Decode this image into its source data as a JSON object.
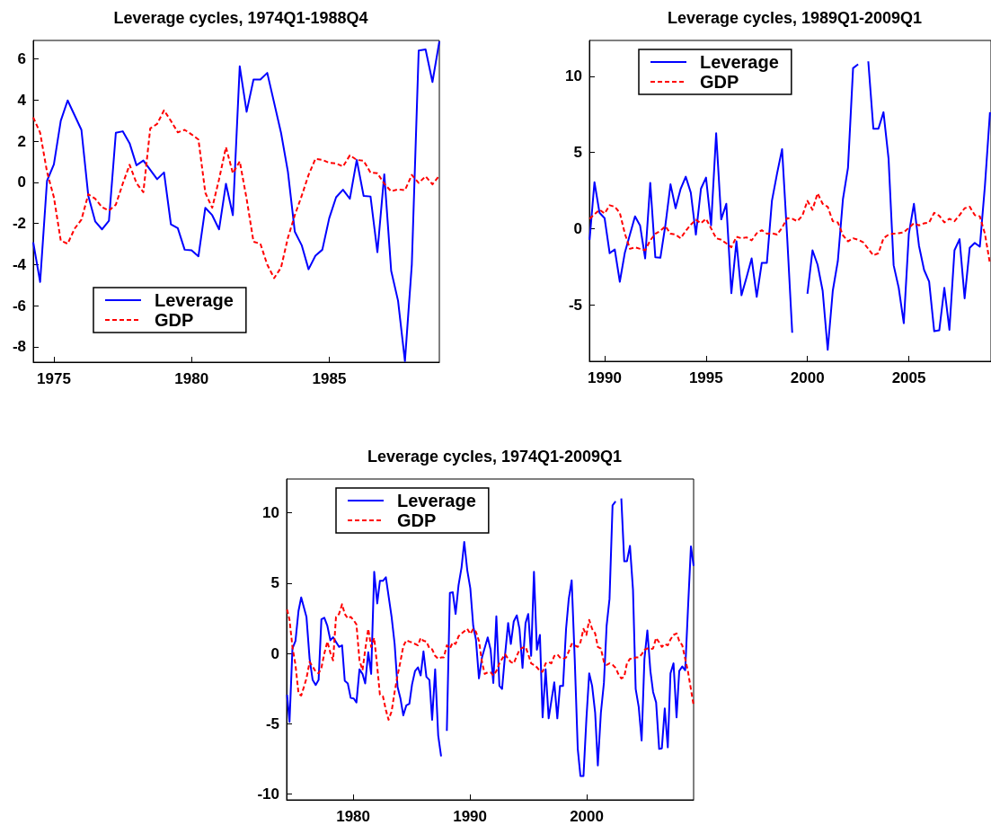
{
  "chart_data": [
    {
      "type": "line",
      "title": "Leverage cycles, 1974Q1-1988Q4",
      "xlim": [
        1974.25,
        1989
      ],
      "xticks": [
        1975,
        1980,
        1985
      ],
      "ylim": [
        -8.75,
        6.9
      ],
      "yticks": [
        -8,
        -6,
        -4,
        -2,
        0,
        2,
        4,
        6
      ],
      "legend": "bottom left",
      "marker": "none",
      "series": [
        {
          "name": "Leverage",
          "color": "#0000ff",
          "line_style": "solid",
          "x": [
            1974.25,
            1974.5,
            1974.75,
            1975,
            1975.25,
            1975.5,
            1976,
            1976.25,
            1976.5,
            1976.75,
            1977,
            1977.25,
            1977.5,
            1977.75,
            1978,
            1978.25,
            1978.75,
            1979,
            1979.25,
            1979.5,
            1979.75,
            1980,
            1980.25,
            1980.5,
            1980.75,
            1981,
            1981.25,
            1981.5,
            1981.75,
            1982,
            1982.25,
            1982.5,
            1982.75,
            1983.25,
            1983.5,
            1983.75,
            1984,
            1984.25,
            1984.5,
            1984.75,
            1985,
            1985.25,
            1985.5,
            1985.75,
            1986,
            1986.25,
            1986.5,
            1986.75,
            1987,
            1987.25,
            1987.5,
            1987.75,
            1988,
            1988.25,
            1988.5,
            1988.75,
            1989
          ],
          "values": [
            -2.92,
            -4.85,
            0.07,
            0.87,
            2.99,
            3.98,
            2.55,
            -0.66,
            -1.9,
            -2.29,
            -1.87,
            2.41,
            2.48,
            1.9,
            0.83,
            1.06,
            0.15,
            0.48,
            -2.04,
            -2.23,
            -3.28,
            -3.31,
            -3.6,
            -1.24,
            -1.6,
            -2.29,
            -0.07,
            -1.6,
            5.64,
            3.43,
            5.0,
            5.0,
            5.32,
            2.41,
            0.51,
            -2.4,
            -3.06,
            -4.23,
            -3.57,
            -3.28,
            -1.75,
            -0.73,
            -0.36,
            -0.8,
            1.09,
            -0.66,
            -0.69,
            -3.4,
            0.39,
            -4.3,
            -5.76,
            -8.7,
            -4.0,
            6.41,
            6.46,
            4.88,
            6.85
          ]
        },
        {
          "name": "GDP",
          "color": "#ff0000",
          "line_style": "dashed",
          "x": [
            1974.25,
            1974.5,
            1974.75,
            1975,
            1975.25,
            1975.5,
            1975.75,
            1976,
            1976.25,
            1976.5,
            1976.75,
            1977,
            1977.25,
            1977.5,
            1977.75,
            1978,
            1978.25,
            1978.5,
            1978.75,
            1979,
            1979.25,
            1979.5,
            1979.75,
            1980,
            1980.25,
            1980.5,
            1980.75,
            1981,
            1981.25,
            1981.5,
            1981.75,
            1982,
            1982.25,
            1982.5,
            1982.75,
            1983,
            1983.25,
            1983.5,
            1983.75,
            1984,
            1984.25,
            1984.5,
            1984.75,
            1985,
            1985.25,
            1985.5,
            1985.75,
            1986,
            1986.25,
            1986.5,
            1986.75,
            1987,
            1987.25,
            1987.5,
            1987.75,
            1988,
            1988.25,
            1988.5,
            1988.75,
            1989
          ],
          "values": [
            3.16,
            2.41,
            0.51,
            -0.73,
            -2.84,
            -2.99,
            -2.26,
            -1.82,
            -0.58,
            -0.8,
            -1.21,
            -1.38,
            -1.09,
            -0.07,
            0.85,
            -0.04,
            -0.48,
            2.62,
            2.84,
            3.5,
            2.99,
            2.43,
            2.55,
            2.33,
            2.08,
            -0.51,
            -1.24,
            0.15,
            1.71,
            0.44,
            1.02,
            -0.8,
            -2.89,
            -2.99,
            -4.01,
            -4.66,
            -4.15,
            -2.7,
            -1.6,
            -0.66,
            0.36,
            1.14,
            1.09,
            0.95,
            0.92,
            0.77,
            1.31,
            1.09,
            1.05,
            0.47,
            0.44,
            -0.07,
            -0.44,
            -0.34,
            -0.39,
            0.36,
            -0.03,
            0.29,
            -0.1,
            0.32
          ]
        }
      ]
    },
    {
      "type": "line",
      "title": "Leverage cycles, 1989Q1-2009Q1",
      "xlim": [
        1989.25,
        2009.05
      ],
      "xticks": [
        1990,
        1995,
        2000,
        2005
      ],
      "ylim": [
        -8.7,
        12.35
      ],
      "yticks": [
        -5,
        0,
        5,
        10
      ],
      "legend": "top left",
      "marker": "none",
      "series": [
        {
          "name": "Leverage",
          "color": "#0000ff",
          "line_style": "solid",
          "x": [
            1989.26,
            1989.5,
            1989.75,
            1990,
            1990.25,
            1990.5,
            1990.75,
            1991,
            1991.5,
            1991.75,
            1992,
            1992.25,
            1992.5,
            1992.75,
            1993,
            1993.25,
            1993.5,
            1993.75,
            1994,
            1994.25,
            1994.5,
            1994.75,
            1995,
            1995.25,
            1995.5,
            1995.75,
            1996,
            1996.25,
            1996.5,
            1996.75,
            1997,
            1997.25,
            1997.5,
            1997.75,
            1998,
            1998.25,
            1998.5,
            1998.75,
            1999,
            1999.25,
            1999.5,
            1999.75,
            2000,
            2000.25,
            2000.5,
            2000.75,
            2001,
            2001.25,
            2001.5,
            2001.75,
            2002,
            2002.25,
            2002.5,
            2002.75,
            2003,
            2003.25,
            2003.5,
            2003.75,
            2004,
            2004.25,
            2004.5,
            2004.75,
            2005,
            2005.25,
            2005.5,
            2005.75,
            2006,
            2006.25,
            2006.5,
            2006.75,
            2007,
            2007.25,
            2007.5,
            2007.75,
            2008,
            2008.25,
            2008.5,
            2008.75,
            2009
          ],
          "values": [
            -0.73,
            3.05,
            1.04,
            0.69,
            -1.61,
            -1.36,
            -3.48,
            -1.56,
            0.81,
            0.2,
            -1.95,
            3.01,
            -1.87,
            -1.91,
            0.26,
            2.91,
            1.34,
            2.62,
            3.41,
            2.36,
            -0.39,
            2.62,
            3.35,
            0.22,
            6.26,
            0.61,
            1.63,
            -4.23,
            -0.83,
            -4.37,
            -3.19,
            -1.95,
            -4.47,
            -2.24,
            -2.24,
            1.83,
            3.6,
            5.22,
            -0.53,
            -6.83,
            null,
            null,
            -4.27,
            -1.42,
            -2.36,
            -4.07,
            -7.95,
            -4.07,
            -2.11,
            1.93,
            4.0,
            10.53,
            10.79,
            null,
            10.98,
            6.56,
            6.56,
            7.64,
            4.59,
            -2.4,
            -3.88,
            -6.2,
            -0.33,
            1.63,
            -1.12,
            -2.7,
            -3.48,
            -6.73,
            -6.67,
            -3.88,
            -6.63,
            -1.42,
            -0.69,
            -4.57,
            -1.26,
            -0.93,
            -1.18,
            2.81,
            7.64
          ]
        },
        {
          "name": "GDP",
          "color": "#ff0000",
          "line_style": "dashed",
          "x": [
            1989.26,
            1989.5,
            1989.75,
            1990,
            1990.25,
            1990.5,
            1990.75,
            1991,
            1991.25,
            1991.5,
            1991.75,
            1992,
            1992.25,
            1992.5,
            1992.75,
            1993,
            1993.25,
            1993.5,
            1993.75,
            1994,
            1994.25,
            1994.5,
            1994.75,
            1995,
            1995.25,
            1995.5,
            1995.75,
            1996,
            1996.25,
            1996.5,
            1996.75,
            1997,
            1997.25,
            1997.5,
            1997.75,
            1998,
            1998.25,
            1998.5,
            1998.75,
            1999,
            1999.25,
            1999.5,
            1999.75,
            2000,
            2000.25,
            2000.5,
            2000.75,
            2001,
            2001.25,
            2001.5,
            2001.75,
            2002,
            2002.25,
            2002.5,
            2002.75,
            2003,
            2003.25,
            2003.5,
            2003.75,
            2004,
            2004.25,
            2004.5,
            2004.75,
            2005,
            2005.25,
            2005.5,
            2005.75,
            2006,
            2006.25,
            2006.5,
            2006.75,
            2007,
            2007.25,
            2007.5,
            2007.75,
            2008,
            2008.25,
            2008.5,
            2008.75,
            2009
          ],
          "values": [
            0.65,
            0.94,
            1.24,
            1.0,
            1.54,
            1.44,
            1.04,
            -0.33,
            -1.32,
            -1.22,
            -1.32,
            -1.42,
            -0.77,
            -0.33,
            -0.14,
            0.16,
            -0.33,
            -0.39,
            -0.63,
            -0.14,
            0.26,
            0.59,
            0.35,
            0.65,
            0.02,
            -0.63,
            -0.73,
            -0.96,
            -1.22,
            -0.53,
            -0.63,
            -0.57,
            -0.77,
            -0.3,
            -0.1,
            -0.33,
            -0.3,
            -0.39,
            0.06,
            0.69,
            0.65,
            0.49,
            0.85,
            1.83,
            1.24,
            2.32,
            1.63,
            1.44,
            0.49,
            0.41,
            -0.43,
            -0.83,
            -0.63,
            -0.73,
            -0.89,
            -1.32,
            -1.75,
            -1.61,
            -0.63,
            -0.39,
            -0.33,
            -0.3,
            -0.24,
            0.06,
            0.35,
            0.22,
            0.35,
            0.41,
            1.04,
            0.85,
            0.41,
            0.65,
            0.49,
            0.89,
            1.34,
            1.44,
            0.89,
            0.81,
            -0.33,
            -2.3
          ]
        }
      ]
    },
    {
      "type": "line",
      "title": "Leverage cycles, 1974Q1-2009Q1",
      "xlim": [
        1974.3,
        2009.15
      ],
      "xticks": [
        1980,
        1990,
        2000
      ],
      "ylim": [
        -10.4,
        12.4
      ],
      "yticks": [
        -10,
        -5,
        0,
        5,
        10
      ],
      "legend": "top left",
      "marker": "none",
      "series": [
        {
          "name": "Leverage",
          "color": "#0000ff",
          "line_style": "solid",
          "x": [
            1974.34,
            1974.55,
            1974.8,
            1975.06,
            1975.32,
            1975.55,
            1976,
            1976.27,
            1976.53,
            1976.79,
            1977.04,
            1977.28,
            1977.53,
            1977.79,
            1978.05,
            1978.28,
            1978.79,
            1979.05,
            1979.28,
            1979.54,
            1979.79,
            1980.05,
            1980.28,
            1980.54,
            1980.8,
            1981.03,
            1981.29,
            1981.54,
            1981.8,
            1982.06,
            1982.29,
            1982.55,
            1982.8,
            1983.29,
            1983.55,
            1983.8,
            1984.04,
            1984.29,
            1984.55,
            1984.81,
            1985.04,
            1985.3,
            1985.55,
            1985.78,
            1986.02,
            1986.27,
            1986.53,
            1986.76,
            1987.02,
            1987.28,
            1987.53,
            1987.76,
            1988.02,
            1988.28,
            1988.53,
            1988.77,
            1989.02,
            1989.28,
            1989.51,
            1989.77,
            1990.03,
            1990.28,
            1990.51,
            1990.77,
            1991.03,
            1991.52,
            1991.77,
            1992,
            1992.26,
            1992.52,
            1992.75,
            1993.01,
            1993.27,
            1993.5,
            1993.75,
            1994.01,
            1994.24,
            1994.5,
            1994.76,
            1994.99,
            1995.24,
            1995.48,
            1995.73,
            1995.99,
            1996.22,
            1996.48,
            1996.74,
            1996.97,
            1997.22,
            1997.48,
            1997.71,
            1997.97,
            1998.23,
            1998.46,
            1998.71,
            1998.97,
            1999.23,
            1999.46,
            1999.72,
            1999.97,
            2000.21,
            2000.46,
            2000.72,
            2000.95,
            2001.21,
            2001.47,
            2001.7,
            2001.95,
            2002.21,
            2002.47,
            2002.7,
            2002.96,
            2003.21,
            2003.44,
            2003.7,
            2003.96,
            2004.19,
            2004.45,
            2004.7,
            2004.94,
            2005.19,
            2005.45,
            2005.68,
            2005.94,
            2006.2,
            2006.43,
            2006.68,
            2006.94,
            2007.17,
            2007.43,
            2007.69,
            2007.92,
            2008.18,
            2008.43,
            2008.66,
            2008.92,
            2009.15
          ],
          "values": [
            -2.94,
            -4.86,
            0.36,
            0.9,
            3.03,
            3.99,
            2.6,
            -0.38,
            -1.88,
            -2.24,
            -1.88,
            2.43,
            2.54,
            1.96,
            0.94,
            1.15,
            0.47,
            0.58,
            -1.94,
            -2.13,
            -3.16,
            -3.2,
            -3.48,
            -1.13,
            -1.45,
            -2.13,
            0.09,
            -1.45,
            5.8,
            3.56,
            5.16,
            5.16,
            5.42,
            2.6,
            0.68,
            -2.37,
            -3.16,
            -4.39,
            -3.69,
            -3.58,
            -2.2,
            -1.24,
            -0.98,
            -1.56,
            0.15,
            -1.66,
            -1.88,
            -4.71,
            -1.13,
            -5.82,
            -7.31,
            null,
            -5.5,
            4.31,
            4.35,
            2.81,
            4.84,
            6.12,
            7.93,
            5.91,
            4.63,
            1.96,
            1.0,
            -1.77,
            -0.28,
            1.15,
            0.26,
            -2.09,
            2.64,
            -2.3,
            -2.52,
            -0.06,
            2.17,
            0.68,
            2.28,
            2.71,
            1.75,
            -1.02,
            2.17,
            2.81,
            -0.17,
            5.8,
            0.26,
            1.32,
            -4.54,
            -1.13,
            -4.61,
            -3.37,
            -2.05,
            -4.61,
            -2.3,
            -2.3,
            1.75,
            3.88,
            5.2,
            -0.38,
            -6.78,
            -8.7,
            -8.7,
            -4.65,
            -1.41,
            -2.3,
            -4.22,
            -7.95,
            -4.22,
            -2.09,
            1.96,
            3.88,
            10.53,
            10.81,
            null,
            11.02,
            6.55,
            6.55,
            7.65,
            4.52,
            -2.52,
            -3.8,
            -6.18,
            -0.38,
            1.64,
            -1.24,
            -2.73,
            -3.48,
            -6.78,
            -6.74,
            -3.9,
            -6.67,
            -1.41,
            -0.7,
            -4.54,
            -1.24,
            -0.92,
            -1.19,
            3.03,
            7.61,
            6.23
          ]
        },
        {
          "name": "GDP",
          "color": "#ff0000",
          "line_style": "dashed",
          "x": [
            1974.34,
            1974.55,
            1974.8,
            1975.06,
            1975.32,
            1975.55,
            1975.81,
            1976,
            1976.27,
            1976.53,
            1976.79,
            1977.04,
            1977.28,
            1977.53,
            1977.79,
            1978.05,
            1978.28,
            1978.53,
            1978.79,
            1979.05,
            1979.28,
            1979.54,
            1979.79,
            1980.05,
            1980.28,
            1980.54,
            1980.8,
            1981.03,
            1981.29,
            1981.54,
            1981.8,
            1982.06,
            1982.29,
            1982.55,
            1982.8,
            1983.03,
            1983.29,
            1983.55,
            1983.8,
            1984.04,
            1984.29,
            1984.55,
            1984.81,
            1985.04,
            1985.3,
            1985.55,
            1985.78,
            1986.02,
            1986.27,
            1986.53,
            1986.76,
            1987.02,
            1987.28,
            1987.53,
            1987.76,
            1988.02,
            1988.28,
            1988.53,
            1988.77,
            1989.02,
            1989.51,
            1989.77,
            1990.03,
            1990.28,
            1990.51,
            1990.77,
            1991.03,
            1991.26,
            1991.52,
            1991.77,
            1992,
            1992.26,
            1992.52,
            1992.75,
            1993.01,
            1993.27,
            1993.5,
            1993.75,
            1994.01,
            1994.24,
            1994.5,
            1994.76,
            1994.99,
            1995.24,
            1995.48,
            1995.73,
            1995.99,
            1996.22,
            1996.48,
            1996.74,
            1996.97,
            1997.22,
            1997.48,
            1997.71,
            1997.97,
            1998.23,
            1998.46,
            1998.71,
            1998.97,
            1999.23,
            1999.46,
            1999.72,
            1999.97,
            2000.21,
            2000.46,
            2000.72,
            2000.95,
            2001.21,
            2001.47,
            2001.7,
            2001.95,
            2002.21,
            2002.47,
            2002.7,
            2002.96,
            2003.21,
            2003.44,
            2003.7,
            2003.96,
            2004.19,
            2004.45,
            2004.7,
            2004.94,
            2005.19,
            2005.45,
            2005.68,
            2005.94,
            2006.2,
            2006.43,
            2006.68,
            2006.94,
            2007.17,
            2007.43,
            2007.69,
            2007.92,
            2008.18,
            2008.43,
            2008.66,
            2009.15
          ],
          "values": [
            3.13,
            2.39,
            0.47,
            -0.81,
            -2.84,
            -2.99,
            -2.3,
            -1.77,
            -0.6,
            -0.92,
            -1.3,
            -1.41,
            -1.02,
            0.0,
            0.85,
            0.04,
            -0.49,
            2.6,
            2.81,
            3.5,
            2.81,
            2.49,
            2.6,
            2.35,
            2.07,
            -0.49,
            -1.19,
            0.26,
            1.75,
            0.47,
            1.11,
            -0.92,
            -2.94,
            -3.05,
            -4.01,
            -4.71,
            -4.12,
            -2.73,
            -1.56,
            -0.6,
            0.51,
            0.94,
            0.85,
            0.79,
            0.68,
            0.58,
            1.11,
            0.9,
            0.85,
            0.36,
            0.3,
            -0.17,
            -0.38,
            -0.28,
            -0.28,
            0.58,
            0.36,
            0.79,
            0.68,
            1.22,
            1.58,
            1.75,
            1.39,
            1.75,
            1.54,
            0.9,
            -0.6,
            -1.45,
            -1.34,
            -1.34,
            -1.56,
            -1.24,
            -0.7,
            -0.38,
            -0.06,
            -0.38,
            -0.6,
            -0.7,
            -0.17,
            0.26,
            0.41,
            0.47,
            -0.06,
            -0.7,
            -0.81,
            -0.98,
            -1.24,
            -1.3,
            -0.7,
            -0.6,
            -0.7,
            -0.17,
            -0.06,
            -0.28,
            -0.38,
            -0.28,
            0.15,
            0.68,
            0.58,
            0.47,
            0.79,
            1.75,
            1.32,
            2.39,
            1.75,
            1.43,
            0.47,
            0.36,
            -0.6,
            -0.81,
            -0.7,
            -0.81,
            -1.02,
            -1.45,
            -1.77,
            -1.66,
            -0.7,
            -0.38,
            -0.38,
            -0.28,
            -0.28,
            -0.06,
            0.26,
            0.36,
            0.3,
            0.36,
            1.11,
            0.79,
            0.47,
            0.68,
            0.58,
            1.0,
            1.32,
            1.43,
            0.9,
            0.58,
            -0.38,
            -1.24,
            -3.69
          ]
        }
      ]
    }
  ]
}
